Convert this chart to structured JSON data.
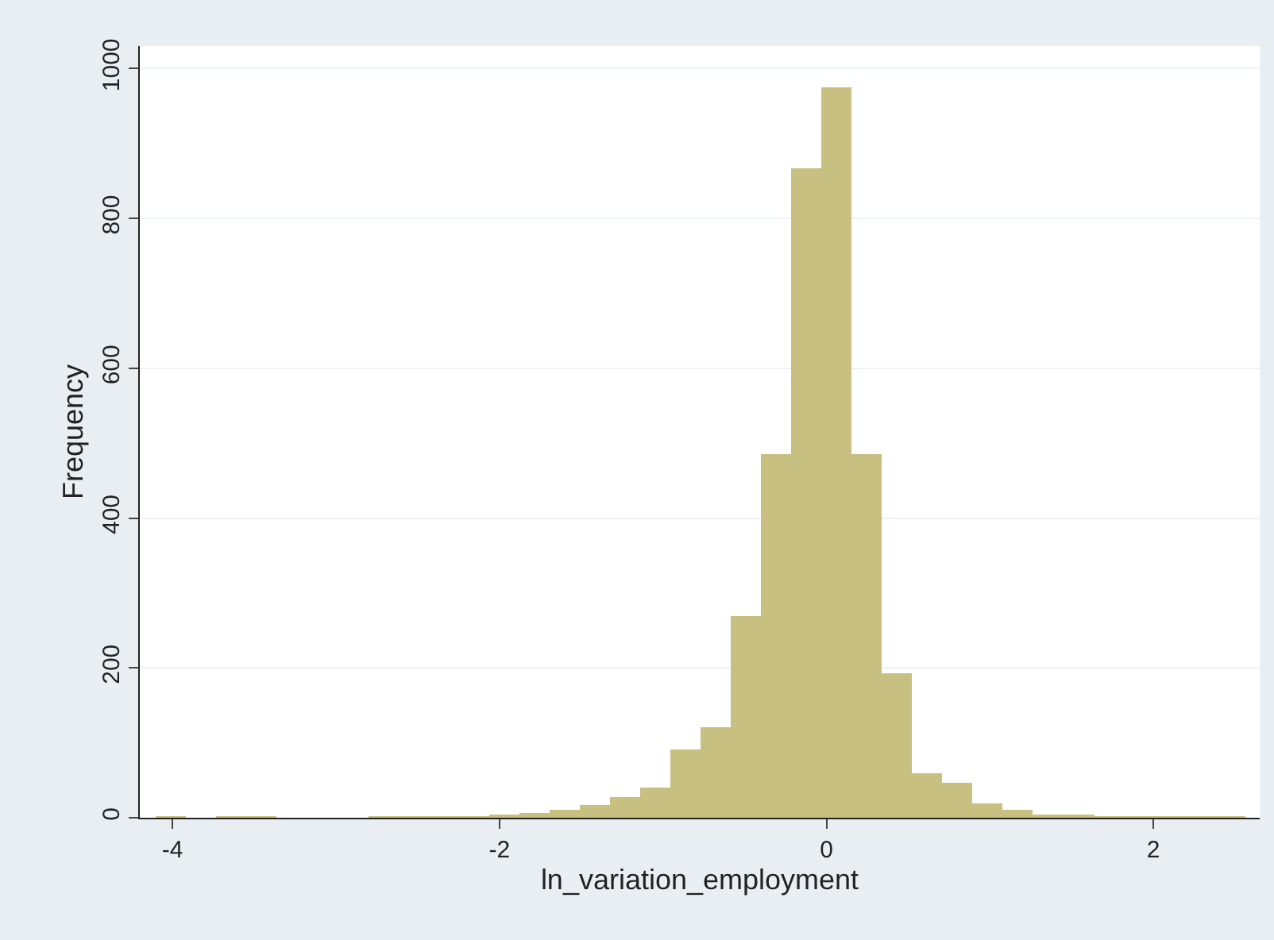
{
  "chart_data": {
    "type": "histogram",
    "xlabel": "ln_variation_employment",
    "ylabel": "Frequency",
    "bins": [
      -4.1,
      -3.915,
      -3.73,
      -3.545,
      -3.36,
      -3.175,
      -2.99,
      -2.805,
      -2.62,
      -2.435,
      -2.25,
      -2.065,
      -1.88,
      -1.695,
      -1.51,
      -1.325,
      -1.14,
      -0.955,
      -0.77,
      -0.585,
      -0.4,
      -0.215,
      -0.03,
      0.155,
      0.34,
      0.525,
      0.71,
      0.895,
      1.08,
      1.265,
      1.45,
      1.635,
      1.82,
      2.005,
      2.19,
      2.375,
      2.56
    ],
    "values": [
      2,
      0,
      1,
      1,
      0,
      0,
      0,
      1,
      1,
      1,
      2,
      3,
      6,
      10,
      18,
      28,
      41,
      91,
      121,
      269,
      486,
      866,
      974,
      486,
      193,
      60,
      46,
      20,
      10,
      5,
      3,
      2,
      1,
      1,
      2,
      2
    ],
    "color": "#c8c080",
    "xlim": [
      -4.2,
      2.65
    ],
    "xticks": [
      -4,
      -2,
      0,
      2
    ],
    "ylim": [
      0,
      1030
    ],
    "yticks": [
      0,
      200,
      400,
      600,
      800,
      1000
    ],
    "grid": "y"
  }
}
